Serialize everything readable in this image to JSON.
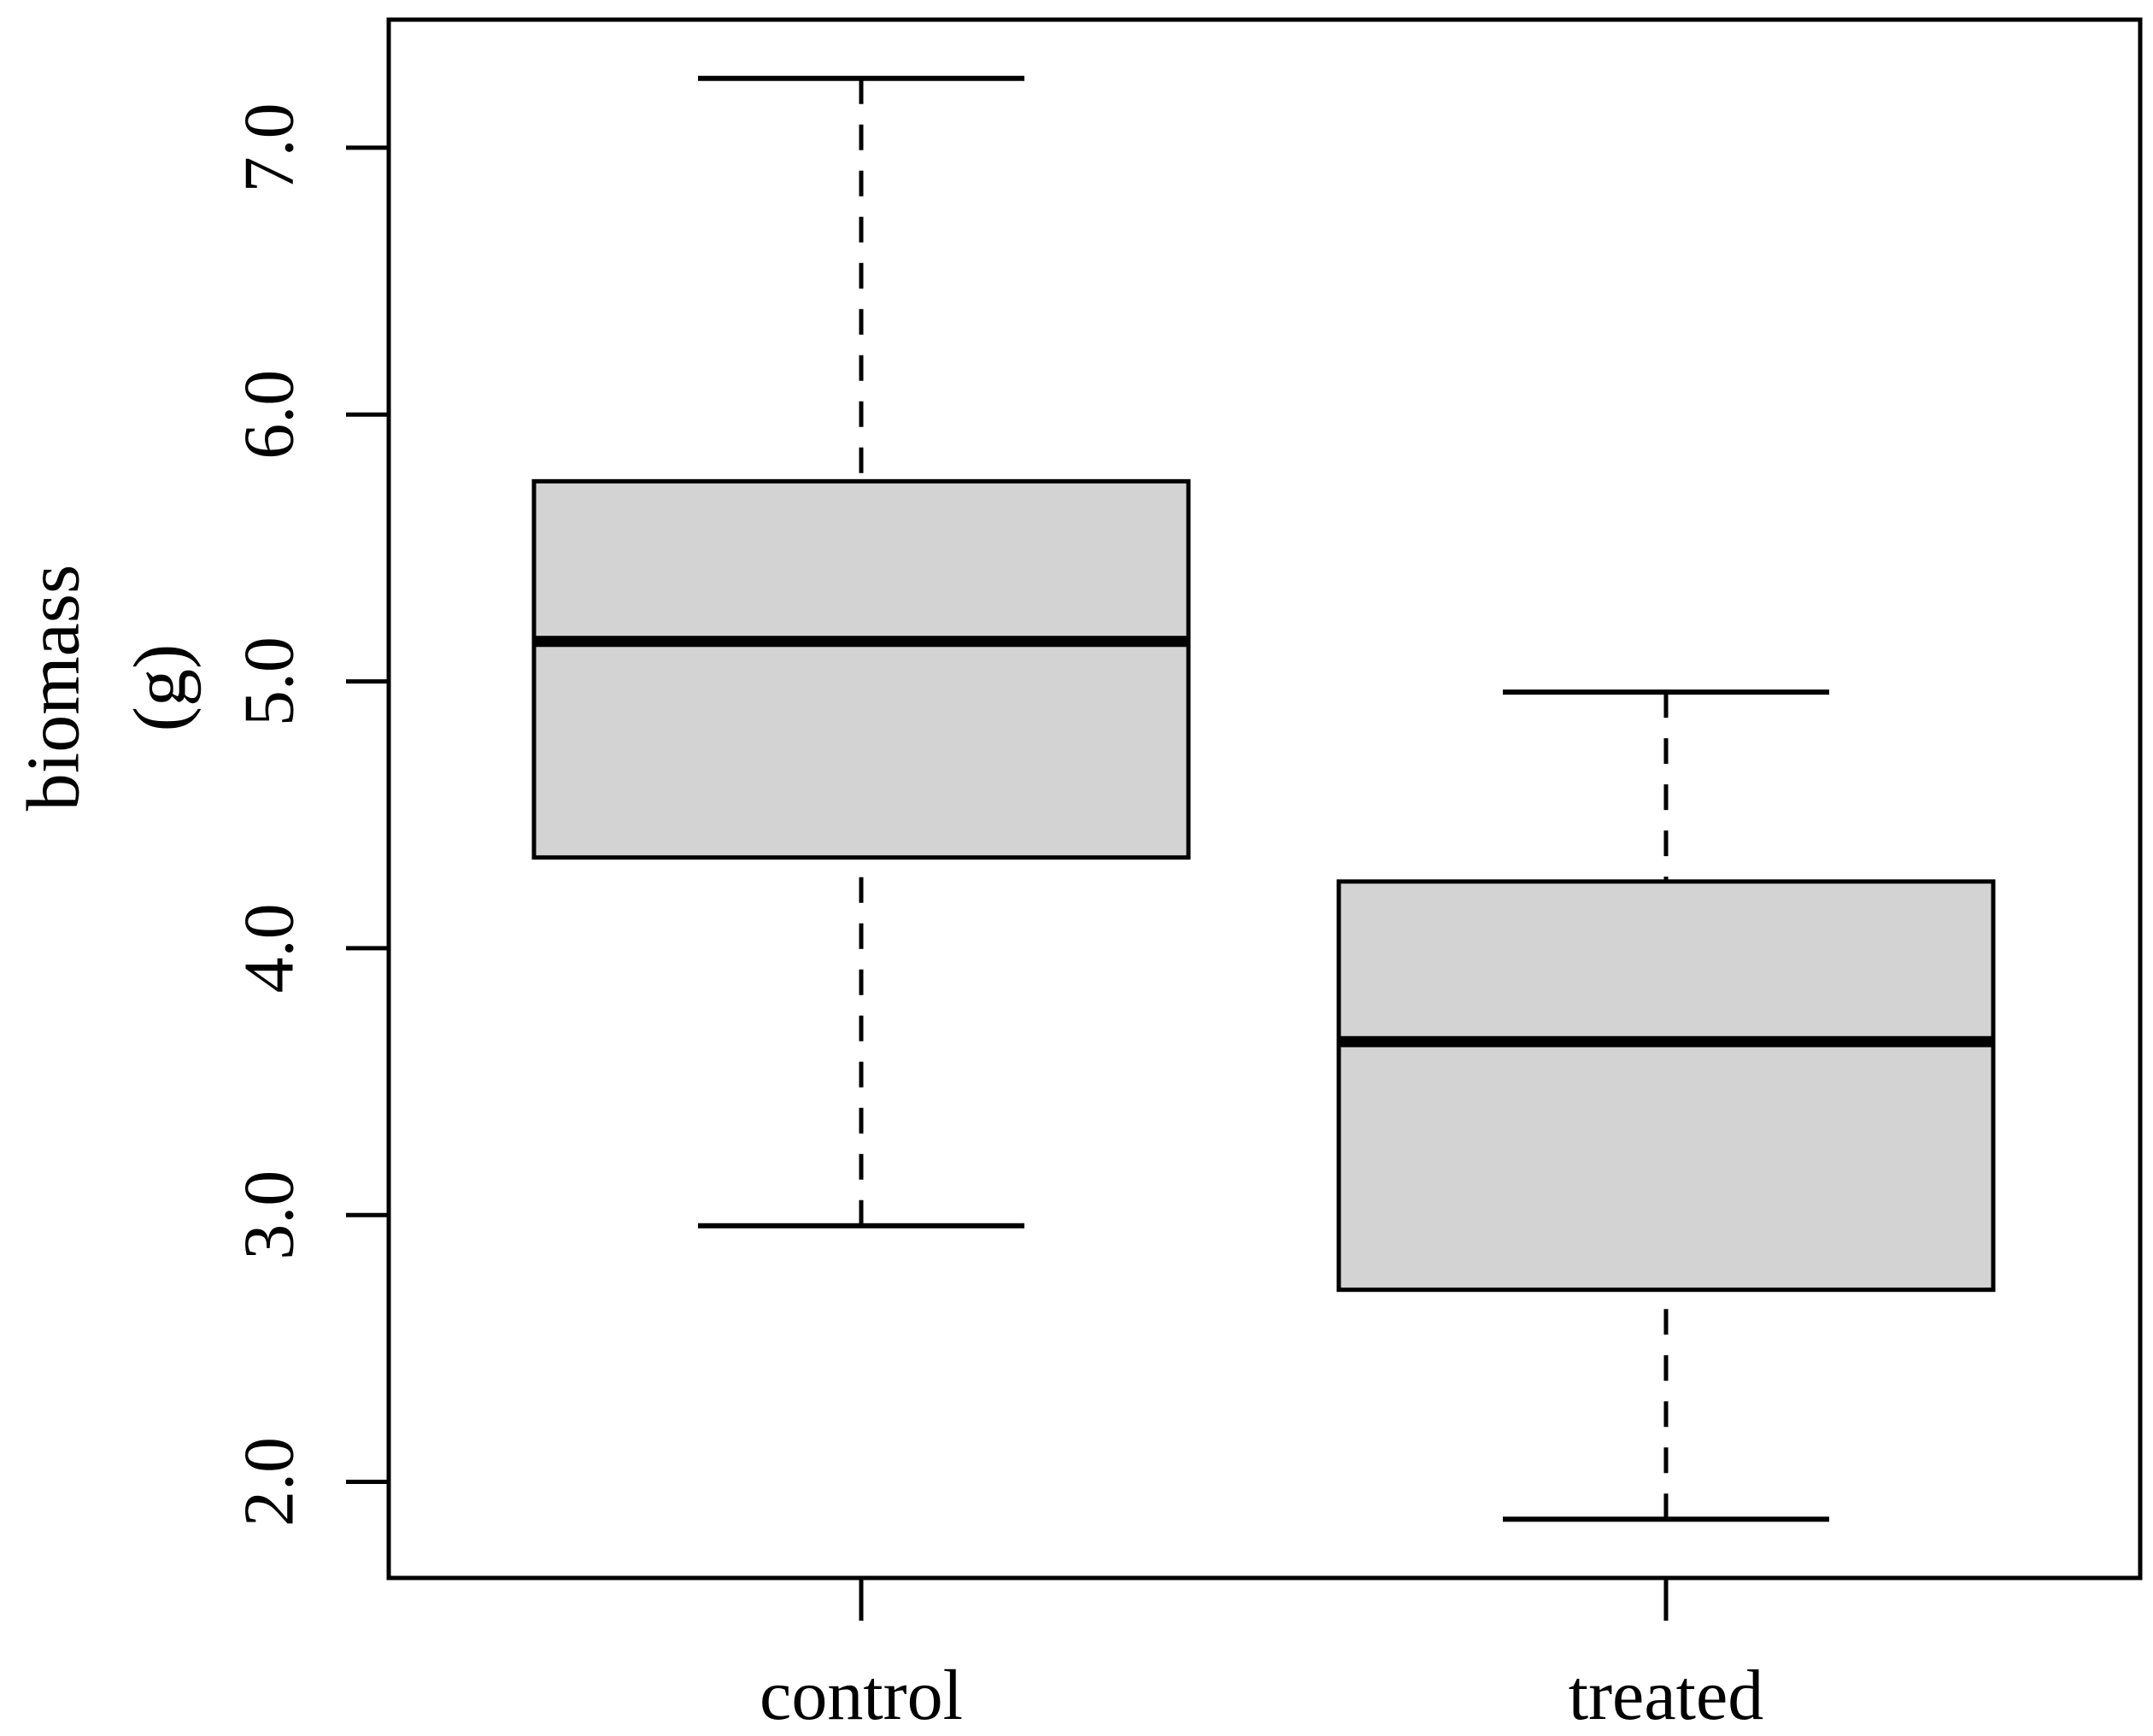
{
  "figure": {
    "background": "#ffffff",
    "description": "R-style box-and-whisker plot comparing biomass (g) of control vs treated groups"
  },
  "chart_data": {
    "type": "boxplot",
    "title": "",
    "xlabel": "",
    "ylabel_lines": [
      "biomass",
      "(g)"
    ],
    "categories": [
      "control",
      "treated"
    ],
    "y_ticks": [
      {
        "value": 2.0,
        "label": "2.0"
      },
      {
        "value": 3.0,
        "label": "3.0"
      },
      {
        "value": 4.0,
        "label": "4.0"
      },
      {
        "value": 5.0,
        "label": "5.0"
      },
      {
        "value": 6.0,
        "label": "6.0"
      },
      {
        "value": 7.0,
        "label": "7.0"
      }
    ],
    "ylim": [
      1.64,
      7.48
    ],
    "grid": false,
    "legend_position": "none",
    "series": [
      {
        "name": "control",
        "whisker_low": 2.96,
        "q1": 4.34,
        "median": 5.15,
        "q3": 5.75,
        "whisker_high": 7.26
      },
      {
        "name": "treated",
        "whisker_low": 1.86,
        "q1": 2.72,
        "median": 3.65,
        "q3": 4.25,
        "whisker_high": 4.96
      }
    ],
    "colors": {
      "box_fill": "#d3d3d3",
      "stroke": "#000000",
      "background": "#ffffff"
    }
  }
}
